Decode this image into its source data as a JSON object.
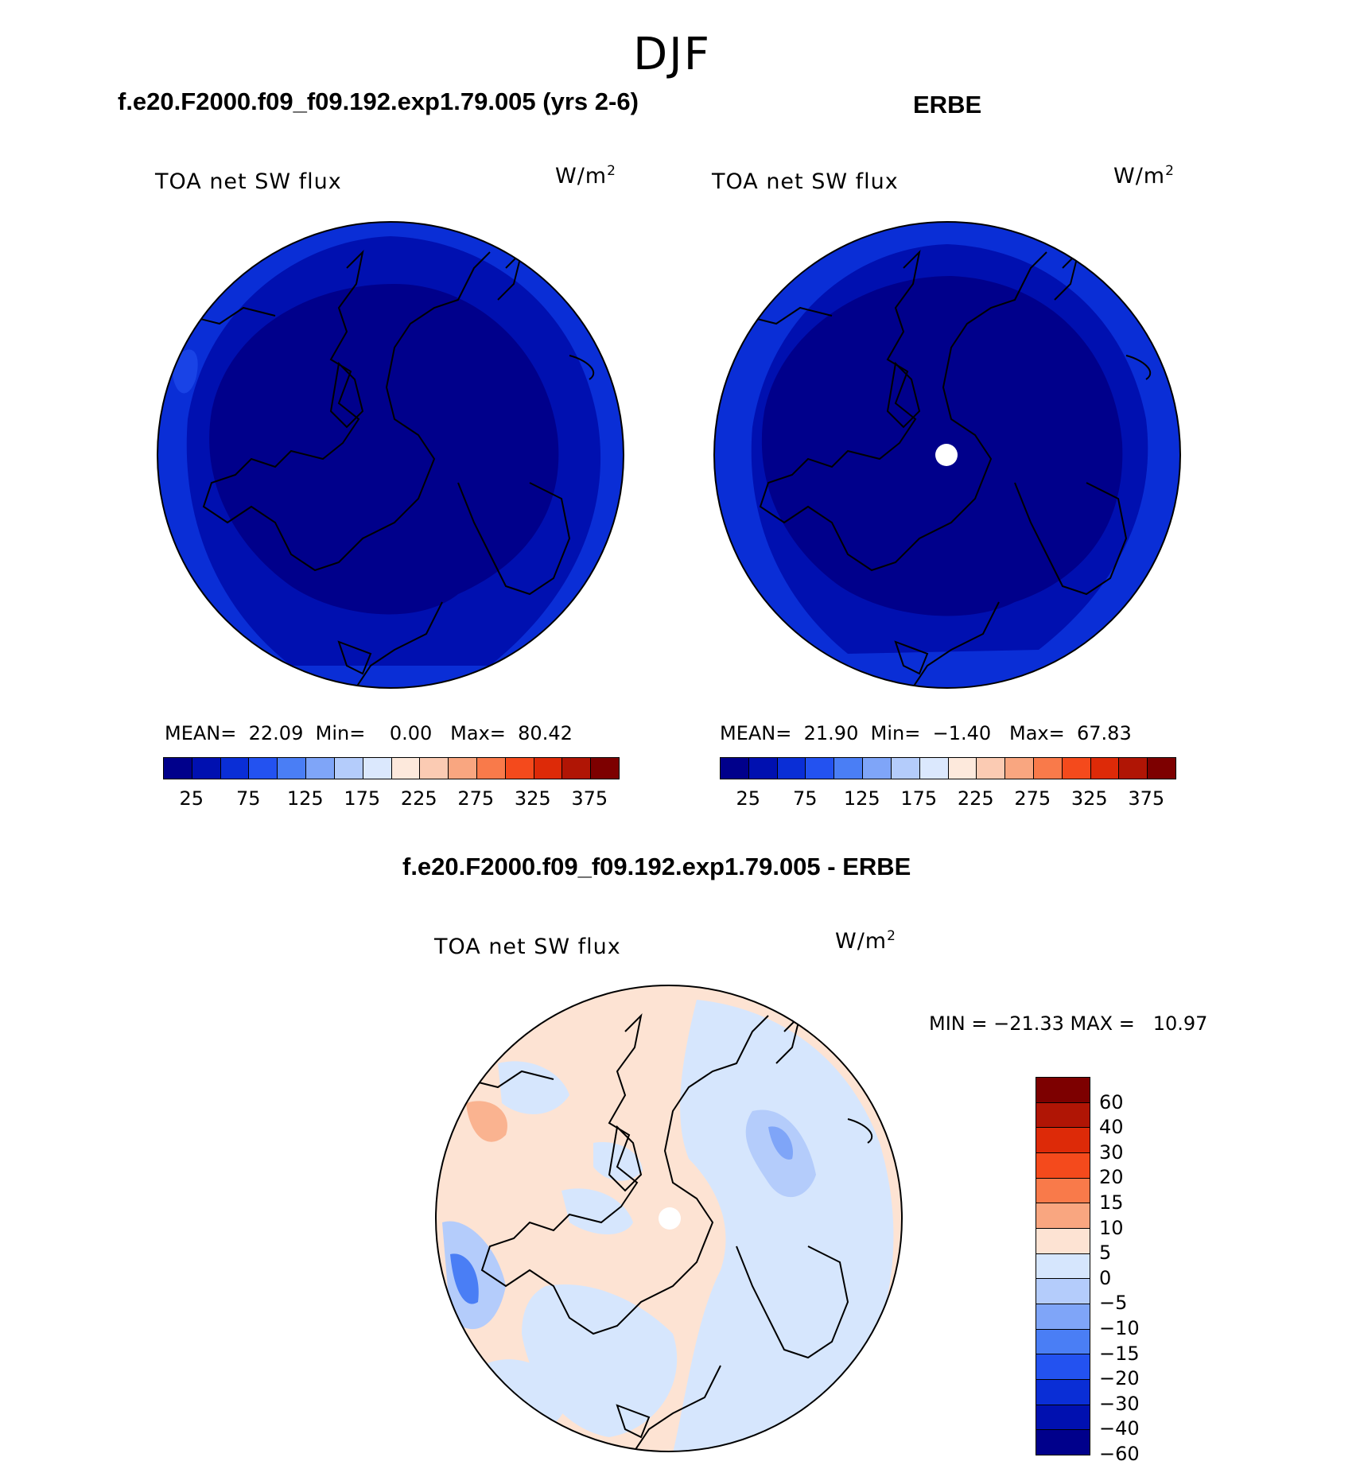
{
  "figure": {
    "title": "DJF"
  },
  "panels": [
    {
      "title": "f.e20.F2000.f09_f09.192.exp1.79.005 (yrs 2-6)",
      "variable": "TOA net SW flux",
      "units": "W/m",
      "units_sup": "2",
      "stats": {
        "mean_label": "MEAN=",
        "mean": "22.09",
        "min_label": "Min=",
        "min": "0.00",
        "max_label": "Max=",
        "max": "80.42"
      },
      "colorbar_ticks": [
        "25",
        "75",
        "125",
        "175",
        "225",
        "275",
        "325",
        "375"
      ]
    },
    {
      "title": "ERBE",
      "variable": "TOA net SW flux",
      "units": "W/m",
      "units_sup": "2",
      "stats": {
        "mean_label": "MEAN=",
        "mean": "21.90",
        "min_label": "Min=",
        "min": "−1.40",
        "max_label": "Max=",
        "max": "67.83"
      },
      "colorbar_ticks": [
        "25",
        "75",
        "125",
        "175",
        "225",
        "275",
        "325",
        "375"
      ]
    },
    {
      "title": "f.e20.F2000.f09_f09.192.exp1.79.005 - ERBE",
      "variable": "TOA net SW flux",
      "units": "W/m",
      "units_sup": "2",
      "minmax": "MIN = −21.33 MAX =   10.97",
      "colorbar_ticks": [
        "60",
        "40",
        "30",
        "20",
        "15",
        "10",
        "5",
        "0",
        "−5",
        "−10",
        "−15",
        "−20",
        "−30",
        "−40",
        "−60"
      ]
    }
  ],
  "colors": {
    "abs_scale": [
      "#00008b",
      "#0010b0",
      "#0a2ed6",
      "#2352f0",
      "#4a7ef5",
      "#7fa5f8",
      "#b4ccfb",
      "#dbe8fd",
      "#fde9dc",
      "#fbcbb3",
      "#f9a680",
      "#f97a4a",
      "#f44a1c",
      "#dd2a08",
      "#b01505",
      "#7d0000"
    ],
    "diff_scale": [
      "#7d0000",
      "#b01505",
      "#dd2a08",
      "#f44a1c",
      "#f97a4a",
      "#f9a680",
      "#fde3d3",
      "#d6e6fd",
      "#b4ccfb",
      "#7fa5f8",
      "#4a7ef5",
      "#2352f0",
      "#0a2ed6",
      "#0010b0",
      "#00008b"
    ]
  }
}
